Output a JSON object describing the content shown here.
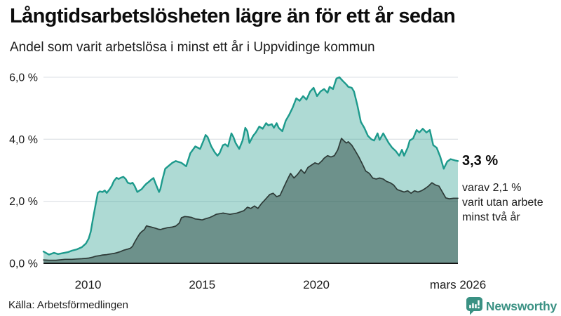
{
  "header": {
    "title": "Långtidsarbetslösheten lägre än för ett år sedan",
    "subtitle": "Andel som varit arbetslösa i minst ett år i Uppvidinge kommun"
  },
  "chart_data": {
    "type": "area",
    "title": "Långtidsarbetslösheten lägre än för ett år sedan",
    "subtitle": "Andel som varit arbetslösa i minst ett år i Uppvidinge kommun",
    "x_unit": "decimal_year",
    "xlim": [
      2008.05,
      2026.2
    ],
    "ylim": [
      0,
      6
    ],
    "grid": true,
    "legend_position": "none",
    "y_ticks": [
      {
        "value": 0,
        "label": "0,0 %"
      },
      {
        "value": 2,
        "label": "2,0 %"
      },
      {
        "value": 4,
        "label": "4,0 %"
      },
      {
        "value": 6,
        "label": "6,0 %"
      }
    ],
    "x_ticks": [
      {
        "value": 2010,
        "label": "2010"
      },
      {
        "value": 2015,
        "label": "2015"
      },
      {
        "value": 2020,
        "label": "2020"
      },
      {
        "value": 2026.2,
        "label": "mars 2026"
      }
    ],
    "series": [
      {
        "name": "Andel som varit arbetslösa i minst ett år",
        "end_value_label": "3,3 %",
        "color": "#1d9a8c",
        "fill": "rgba(42,157,143,0.38)",
        "stroke_width": 2.4,
        "points": [
          [
            2008.05,
            0.38
          ],
          [
            2008.29,
            0.28
          ],
          [
            2008.51,
            0.34
          ],
          [
            2008.69,
            0.3
          ],
          [
            2008.9,
            0.33
          ],
          [
            2009.12,
            0.36
          ],
          [
            2009.3,
            0.41
          ],
          [
            2009.51,
            0.45
          ],
          [
            2009.73,
            0.52
          ],
          [
            2009.91,
            0.64
          ],
          [
            2010.03,
            0.8
          ],
          [
            2010.12,
            1.02
          ],
          [
            2010.21,
            1.4
          ],
          [
            2010.34,
            1.93
          ],
          [
            2010.43,
            2.27
          ],
          [
            2010.52,
            2.32
          ],
          [
            2010.64,
            2.3
          ],
          [
            2010.73,
            2.35
          ],
          [
            2010.82,
            2.27
          ],
          [
            2010.95,
            2.39
          ],
          [
            2011.04,
            2.5
          ],
          [
            2011.13,
            2.65
          ],
          [
            2011.25,
            2.76
          ],
          [
            2011.34,
            2.72
          ],
          [
            2011.43,
            2.76
          ],
          [
            2011.55,
            2.79
          ],
          [
            2011.65,
            2.72
          ],
          [
            2011.74,
            2.6
          ],
          [
            2011.86,
            2.57
          ],
          [
            2011.95,
            2.6
          ],
          [
            2012.04,
            2.5
          ],
          [
            2012.16,
            2.3
          ],
          [
            2012.26,
            2.35
          ],
          [
            2012.35,
            2.39
          ],
          [
            2012.47,
            2.5
          ],
          [
            2012.56,
            2.57
          ],
          [
            2012.65,
            2.62
          ],
          [
            2012.77,
            2.7
          ],
          [
            2012.87,
            2.75
          ],
          [
            2012.96,
            2.57
          ],
          [
            2013.11,
            2.3
          ],
          [
            2013.17,
            2.4
          ],
          [
            2013.26,
            2.7
          ],
          [
            2013.38,
            3.05
          ],
          [
            2013.54,
            3.15
          ],
          [
            2013.69,
            3.24
          ],
          [
            2013.84,
            3.3
          ],
          [
            2014.09,
            3.24
          ],
          [
            2014.3,
            3.13
          ],
          [
            2014.48,
            3.55
          ],
          [
            2014.7,
            3.77
          ],
          [
            2014.91,
            3.69
          ],
          [
            2015.06,
            3.96
          ],
          [
            2015.15,
            4.14
          ],
          [
            2015.24,
            4.07
          ],
          [
            2015.4,
            3.77
          ],
          [
            2015.55,
            3.58
          ],
          [
            2015.67,
            3.47
          ],
          [
            2015.76,
            3.55
          ],
          [
            2015.91,
            3.81
          ],
          [
            2016.01,
            3.84
          ],
          [
            2016.13,
            3.77
          ],
          [
            2016.28,
            4.19
          ],
          [
            2016.37,
            4.07
          ],
          [
            2016.46,
            3.89
          ],
          [
            2016.62,
            3.69
          ],
          [
            2016.77,
            3.96
          ],
          [
            2016.89,
            4.37
          ],
          [
            2016.98,
            4.26
          ],
          [
            2017.07,
            3.88
          ],
          [
            2017.23,
            4.11
          ],
          [
            2017.35,
            4.22
          ],
          [
            2017.5,
            4.41
          ],
          [
            2017.65,
            4.34
          ],
          [
            2017.8,
            4.52
          ],
          [
            2017.9,
            4.45
          ],
          [
            2018.05,
            4.49
          ],
          [
            2018.14,
            4.37
          ],
          [
            2018.26,
            4.52
          ],
          [
            2018.35,
            4.37
          ],
          [
            2018.51,
            4.26
          ],
          [
            2018.66,
            4.6
          ],
          [
            2018.81,
            4.79
          ],
          [
            2018.96,
            5.02
          ],
          [
            2019.12,
            5.32
          ],
          [
            2019.27,
            5.24
          ],
          [
            2019.42,
            5.39
          ],
          [
            2019.57,
            5.28
          ],
          [
            2019.73,
            5.54
          ],
          [
            2019.88,
            5.66
          ],
          [
            2020.03,
            5.39
          ],
          [
            2020.18,
            5.54
          ],
          [
            2020.34,
            5.62
          ],
          [
            2020.49,
            5.5
          ],
          [
            2020.58,
            5.69
          ],
          [
            2020.73,
            5.62
          ],
          [
            2020.88,
            5.96
          ],
          [
            2021.01,
            6.0
          ],
          [
            2021.16,
            5.88
          ],
          [
            2021.31,
            5.77
          ],
          [
            2021.4,
            5.69
          ],
          [
            2021.55,
            5.66
          ],
          [
            2021.65,
            5.54
          ],
          [
            2021.8,
            5.09
          ],
          [
            2021.95,
            4.56
          ],
          [
            2022.1,
            4.37
          ],
          [
            2022.26,
            4.11
          ],
          [
            2022.41,
            4.0
          ],
          [
            2022.53,
            3.96
          ],
          [
            2022.68,
            4.19
          ],
          [
            2022.77,
            3.98
          ],
          [
            2022.93,
            4.19
          ],
          [
            2023.02,
            4.07
          ],
          [
            2023.17,
            3.88
          ],
          [
            2023.32,
            3.73
          ],
          [
            2023.48,
            3.62
          ],
          [
            2023.63,
            3.47
          ],
          [
            2023.75,
            3.66
          ],
          [
            2023.84,
            3.47
          ],
          [
            2024.0,
            3.73
          ],
          [
            2024.09,
            3.96
          ],
          [
            2024.24,
            4.03
          ],
          [
            2024.39,
            4.3
          ],
          [
            2024.51,
            4.22
          ],
          [
            2024.66,
            4.34
          ],
          [
            2024.82,
            4.22
          ],
          [
            2024.97,
            4.3
          ],
          [
            2025.12,
            3.81
          ],
          [
            2025.27,
            3.73
          ],
          [
            2025.43,
            3.43
          ],
          [
            2025.58,
            3.05
          ],
          [
            2025.73,
            3.28
          ],
          [
            2025.88,
            3.36
          ],
          [
            2026.07,
            3.32
          ],
          [
            2026.2,
            3.3
          ]
        ]
      },
      {
        "name": "varav varit utan arbete minst två år",
        "end_value_label": "2,1 %",
        "color": "#2d3a37",
        "fill": "rgba(32,58,53,0.46)",
        "stroke_width": 1.7,
        "points": [
          [
            2008.05,
            0.11
          ],
          [
            2008.29,
            0.1
          ],
          [
            2008.6,
            0.1
          ],
          [
            2008.99,
            0.13
          ],
          [
            2009.3,
            0.13
          ],
          [
            2009.51,
            0.14
          ],
          [
            2009.73,
            0.15
          ],
          [
            2009.91,
            0.16
          ],
          [
            2010.03,
            0.17
          ],
          [
            2010.21,
            0.2
          ],
          [
            2010.34,
            0.23
          ],
          [
            2010.52,
            0.25
          ],
          [
            2010.64,
            0.27
          ],
          [
            2010.82,
            0.28
          ],
          [
            2010.95,
            0.3
          ],
          [
            2011.13,
            0.32
          ],
          [
            2011.25,
            0.34
          ],
          [
            2011.43,
            0.38
          ],
          [
            2011.55,
            0.42
          ],
          [
            2011.74,
            0.46
          ],
          [
            2011.86,
            0.49
          ],
          [
            2011.95,
            0.55
          ],
          [
            2012.04,
            0.68
          ],
          [
            2012.16,
            0.83
          ],
          [
            2012.26,
            0.95
          ],
          [
            2012.35,
            1.02
          ],
          [
            2012.47,
            1.09
          ],
          [
            2012.56,
            1.21
          ],
          [
            2012.65,
            1.19
          ],
          [
            2012.77,
            1.17
          ],
          [
            2012.87,
            1.15
          ],
          [
            2012.96,
            1.13
          ],
          [
            2013.08,
            1.1
          ],
          [
            2013.17,
            1.09
          ],
          [
            2013.26,
            1.11
          ],
          [
            2013.38,
            1.13
          ],
          [
            2013.48,
            1.15
          ],
          [
            2013.57,
            1.16
          ],
          [
            2013.69,
            1.17
          ],
          [
            2013.84,
            1.2
          ],
          [
            2014.0,
            1.3
          ],
          [
            2014.09,
            1.47
          ],
          [
            2014.24,
            1.51
          ],
          [
            2014.39,
            1.5
          ],
          [
            2014.54,
            1.48
          ],
          [
            2014.7,
            1.43
          ],
          [
            2014.85,
            1.42
          ],
          [
            2015.0,
            1.4
          ],
          [
            2015.15,
            1.44
          ],
          [
            2015.3,
            1.47
          ],
          [
            2015.46,
            1.52
          ],
          [
            2015.61,
            1.58
          ],
          [
            2015.76,
            1.6
          ],
          [
            2015.91,
            1.62
          ],
          [
            2016.07,
            1.6
          ],
          [
            2016.22,
            1.58
          ],
          [
            2016.37,
            1.6
          ],
          [
            2016.52,
            1.62
          ],
          [
            2016.68,
            1.66
          ],
          [
            2016.83,
            1.7
          ],
          [
            2016.98,
            1.81
          ],
          [
            2017.13,
            1.77
          ],
          [
            2017.29,
            1.85
          ],
          [
            2017.44,
            1.77
          ],
          [
            2017.59,
            1.92
          ],
          [
            2017.74,
            2.04
          ],
          [
            2017.96,
            2.22
          ],
          [
            2018.11,
            2.26
          ],
          [
            2018.26,
            2.15
          ],
          [
            2018.41,
            2.19
          ],
          [
            2018.57,
            2.45
          ],
          [
            2018.72,
            2.68
          ],
          [
            2018.87,
            2.9
          ],
          [
            2019.02,
            2.75
          ],
          [
            2019.18,
            2.87
          ],
          [
            2019.33,
            3.02
          ],
          [
            2019.48,
            2.9
          ],
          [
            2019.63,
            3.09
          ],
          [
            2019.79,
            3.17
          ],
          [
            2019.94,
            3.24
          ],
          [
            2020.09,
            3.2
          ],
          [
            2020.24,
            3.3
          ],
          [
            2020.34,
            3.39
          ],
          [
            2020.49,
            3.47
          ],
          [
            2020.64,
            3.43
          ],
          [
            2020.79,
            3.47
          ],
          [
            2020.94,
            3.66
          ],
          [
            2021.1,
            4.03
          ],
          [
            2021.19,
            3.96
          ],
          [
            2021.31,
            3.88
          ],
          [
            2021.4,
            3.92
          ],
          [
            2021.55,
            3.81
          ],
          [
            2021.71,
            3.62
          ],
          [
            2021.86,
            3.43
          ],
          [
            2022.01,
            3.21
          ],
          [
            2022.16,
            2.98
          ],
          [
            2022.32,
            2.9
          ],
          [
            2022.47,
            2.75
          ],
          [
            2022.62,
            2.72
          ],
          [
            2022.77,
            2.75
          ],
          [
            2022.93,
            2.72
          ],
          [
            2023.08,
            2.64
          ],
          [
            2023.23,
            2.6
          ],
          [
            2023.38,
            2.53
          ],
          [
            2023.54,
            2.38
          ],
          [
            2023.69,
            2.34
          ],
          [
            2023.84,
            2.3
          ],
          [
            2024.0,
            2.34
          ],
          [
            2024.15,
            2.26
          ],
          [
            2024.3,
            2.34
          ],
          [
            2024.45,
            2.3
          ],
          [
            2024.6,
            2.34
          ],
          [
            2024.76,
            2.41
          ],
          [
            2024.91,
            2.49
          ],
          [
            2025.06,
            2.6
          ],
          [
            2025.21,
            2.53
          ],
          [
            2025.37,
            2.49
          ],
          [
            2025.52,
            2.3
          ],
          [
            2025.67,
            2.11
          ],
          [
            2025.82,
            2.08
          ],
          [
            2026.01,
            2.1
          ],
          [
            2026.2,
            2.1
          ]
        ]
      }
    ]
  },
  "annotations": {
    "value_label": "3,3 %",
    "note_lines": [
      "varav 2,1 %",
      "varit utan arbete",
      "minst två år"
    ]
  },
  "footer": {
    "source": "Källa: Arbetsförmedlingen",
    "brand": "Newsworthy"
  },
  "colors": {
    "accent": "#1d9a8c",
    "brand": "#3a9183",
    "gridline": "#e2e5e9",
    "axis": "#141414"
  }
}
